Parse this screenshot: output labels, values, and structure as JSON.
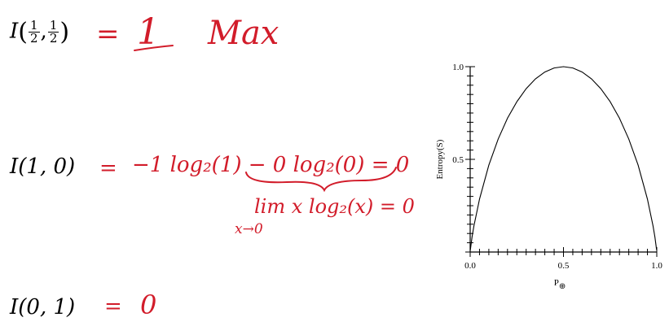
{
  "equations": {
    "half": {
      "lhs": "I",
      "num1": "1",
      "den1": "2",
      "num2": "1",
      "den2": "2",
      "equals": "=",
      "value": "1",
      "note": "Max"
    },
    "one_zero": {
      "lhs": "I(1, 0)",
      "equals": "=",
      "expr": "−1 log₂(1) − 0 log₂(0) = 0",
      "limit": "lim x log₂(x) = 0",
      "limit_sub": "x→0"
    },
    "zero_one": {
      "lhs": "I(0, 1)",
      "equals": "=",
      "value": "0"
    }
  },
  "colors": {
    "handwriting": "#d21c2a",
    "ink": "#000000"
  },
  "chart_data": {
    "type": "line",
    "title": "",
    "xlabel": "P",
    "xlabel_sub": "⊕",
    "ylabel": "Entropy(S)",
    "xlim": [
      0,
      1
    ],
    "ylim": [
      0,
      1
    ],
    "x_ticks": [
      {
        "value": 0,
        "label": "0.0"
      },
      {
        "value": 0.5,
        "label": "0.5"
      },
      {
        "value": 1,
        "label": "1.0"
      }
    ],
    "y_ticks": [
      {
        "value": 0.5,
        "label": "0.5"
      },
      {
        "value": 1,
        "label": "1.0"
      }
    ],
    "minor_tick_step": 0.05,
    "series": [
      {
        "x": [
          0.001,
          0.01,
          0.02,
          0.05,
          0.1,
          0.15,
          0.2,
          0.25,
          0.3,
          0.35,
          0.4,
          0.45,
          0.5,
          0.55,
          0.6,
          0.65,
          0.7,
          0.75,
          0.8,
          0.85,
          0.9,
          0.95,
          0.98,
          0.99,
          0.999
        ],
        "y": [
          0.011,
          0.081,
          0.141,
          0.286,
          0.469,
          0.61,
          0.722,
          0.811,
          0.881,
          0.934,
          0.971,
          0.993,
          1.0,
          0.993,
          0.971,
          0.934,
          0.881,
          0.811,
          0.722,
          0.61,
          0.469,
          0.286,
          0.141,
          0.081,
          0.011
        ]
      }
    ]
  }
}
